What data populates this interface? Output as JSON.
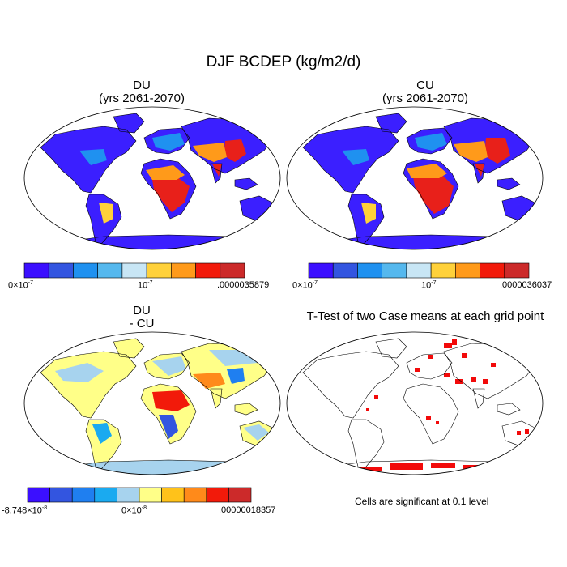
{
  "title": "DJF BCDEP (kg/m2/d)",
  "panels": {
    "du": {
      "title": "DU",
      "subtitle": "(yrs 2061-2070)",
      "colorbar": {
        "colors": [
          "#3b0fff",
          "#3355e0",
          "#1f91f0",
          "#55b8ee",
          "#c8e6f5",
          "#ffd13a",
          "#ff9a1a",
          "#f21a0a",
          "#cc2a2a"
        ],
        "labels": {
          "min": "0×10",
          "min_exp": "-7",
          "mid": "10",
          "mid_exp": "-7",
          "max": ".0000035879"
        }
      }
    },
    "cu": {
      "title": "CU",
      "subtitle": "(yrs 2061-2070)",
      "colorbar": {
        "colors": [
          "#3b0fff",
          "#3355e0",
          "#1f91f0",
          "#55b8ee",
          "#c8e6f5",
          "#ffd13a",
          "#ff9a1a",
          "#f21a0a",
          "#cc2a2a"
        ],
        "labels": {
          "min": "0×10",
          "min_exp": "-7",
          "mid": "10",
          "mid_exp": "-7",
          "max": ".0000036037"
        }
      }
    },
    "diff": {
      "title": "DU",
      "subtitle": "- CU",
      "colorbar": {
        "colors": [
          "#3b0fff",
          "#3355e0",
          "#1f7ff0",
          "#1aaaf0",
          "#a7d3ee",
          "#ffff88",
          "#ffc21a",
          "#ff8a1a",
          "#f21a0a",
          "#cc2a2a"
        ],
        "labels": {
          "min": "-8.748×10",
          "min_exp": "-8",
          "mid": "0×10",
          "mid_exp": "-8",
          "max": ".00000018357"
        }
      }
    },
    "ttest": {
      "title": "T-Test of two Case means at each grid point",
      "note": "Cells are significant at 0.1 level"
    }
  }
}
